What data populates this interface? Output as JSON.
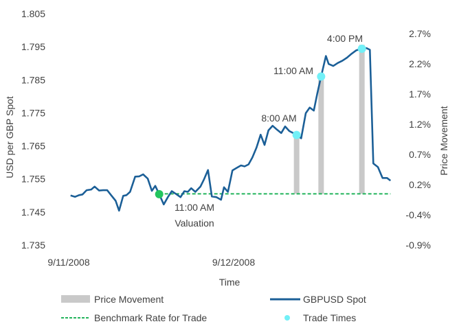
{
  "chart_data": {
    "type": "line",
    "title": "",
    "xlabel": "Time",
    "ylabel": "USD per GBP Spot",
    "y2label": "Price Movement",
    "x_ticks": [
      "9/11/2008",
      "9/12/2008"
    ],
    "y_ticks": [
      "1.805",
      "1.795",
      "1.785",
      "1.775",
      "1.765",
      "1.755",
      "1.745",
      "1.735"
    ],
    "ylim": [
      1.735,
      1.805
    ],
    "y2_ticks": [
      "2.7%",
      "2.2%",
      "1.7%",
      "1.2%",
      "0.7%",
      "0.2%",
      "-0.4%",
      "-0.9%"
    ],
    "y2lim": [
      -0.9,
      2.7
    ],
    "grid": false,
    "legend_position": "bottom",
    "colors": {
      "spot": "#1b5f97",
      "benchmark": "#22b35b",
      "bars": "#c9c9c9",
      "trade": "#72f0f7",
      "valuation": "#22c55e"
    },
    "series": [
      {
        "name": "GBPUSD Spot",
        "points": [
          [
            "2008-09-11 00:28",
            1.75
          ],
          [
            "2008-09-11 01:08",
            1.7496
          ],
          [
            "2008-09-11 01:42",
            1.7501
          ],
          [
            "2008-09-11 02:12",
            1.7503
          ],
          [
            "2008-09-11 02:48",
            1.7516
          ],
          [
            "2008-09-11 03:28",
            1.7518
          ],
          [
            "2008-09-11 03:58",
            1.7527
          ],
          [
            "2008-09-11 04:38",
            1.7515
          ],
          [
            "2008-09-11 05:12",
            1.7516
          ],
          [
            "2008-09-11 05:48",
            1.7516
          ],
          [
            "2008-09-11 06:22",
            1.7501
          ],
          [
            "2008-09-11 07:02",
            1.7484
          ],
          [
            "2008-09-11 07:32",
            1.7454
          ],
          [
            "2008-09-11 08:08",
            1.7499
          ],
          [
            "2008-09-11 08:36",
            1.7501
          ],
          [
            "2008-09-11 09:08",
            1.7511
          ],
          [
            "2008-09-11 09:52",
            1.7557
          ],
          [
            "2008-09-11 10:28",
            1.7558
          ],
          [
            "2008-09-11 11:02",
            1.7564
          ],
          [
            "2008-09-11 11:42",
            1.7551
          ],
          [
            "2008-09-11 12:18",
            1.7514
          ],
          [
            "2008-09-11 12:48",
            1.7529
          ],
          [
            "2008-09-11 13:22",
            1.7504
          ],
          [
            "2008-09-11 14:02",
            1.7473
          ],
          [
            "2008-09-11 14:38",
            1.7495
          ],
          [
            "2008-09-11 15:12",
            1.7513
          ],
          [
            "2008-09-11 15:52",
            1.7504
          ],
          [
            "2008-09-11 16:28",
            1.7495
          ],
          [
            "2008-09-11 17:02",
            1.7513
          ],
          [
            "2008-09-11 17:32",
            1.7511
          ],
          [
            "2008-09-11 18:02",
            1.7522
          ],
          [
            "2008-09-11 18:38",
            1.7511
          ],
          [
            "2008-09-11 19:22",
            1.7527
          ],
          [
            "2008-09-11 19:52",
            1.7548
          ],
          [
            "2008-09-11 20:28",
            1.7577
          ],
          [
            "2008-09-11 21:02",
            1.7497
          ],
          [
            "2008-09-11 21:42",
            1.7495
          ],
          [
            "2008-09-11 22:22",
            1.7487
          ],
          [
            "2008-09-11 22:48",
            1.7525
          ],
          [
            "2008-09-11 23:22",
            1.7511
          ],
          [
            "2008-09-12 00:02",
            1.7576
          ],
          [
            "2008-09-12 00:42",
            1.7584
          ],
          [
            "2008-09-12 01:16",
            1.7591
          ],
          [
            "2008-09-12 01:48",
            1.7588
          ],
          [
            "2008-09-12 02:22",
            1.7594
          ],
          [
            "2008-09-12 02:56",
            1.7615
          ],
          [
            "2008-09-12 03:32",
            1.7645
          ],
          [
            "2008-09-12 04:08",
            1.7684
          ],
          [
            "2008-09-12 04:42",
            1.7653
          ],
          [
            "2008-09-12 05:16",
            1.7697
          ],
          [
            "2008-09-12 05:52",
            1.7711
          ],
          [
            "2008-09-12 06:28",
            1.77
          ],
          [
            "2008-09-12 07:08",
            1.7689
          ],
          [
            "2008-09-12 07:42",
            1.7709
          ],
          [
            "2008-09-12 08:18",
            1.7695
          ],
          [
            "2008-09-12 08:52",
            1.7689
          ],
          [
            "2008-09-12 09:22",
            1.7683
          ],
          [
            "2008-09-12 10:02",
            1.7673
          ],
          [
            "2008-09-12 10:42",
            1.7749
          ],
          [
            "2008-09-12 11:16",
            1.7766
          ],
          [
            "2008-09-12 11:52",
            1.7757
          ],
          [
            "2008-09-12 12:22",
            1.7808
          ],
          [
            "2008-09-12 12:56",
            1.786
          ],
          [
            "2008-09-12 13:38",
            1.7922
          ],
          [
            "2008-09-12 14:02",
            1.7898
          ],
          [
            "2008-09-12 14:42",
            1.7892
          ],
          [
            "2008-09-12 15:22",
            1.7901
          ],
          [
            "2008-09-12 16:02",
            1.7908
          ],
          [
            "2008-09-12 16:42",
            1.7917
          ],
          [
            "2008-09-12 17:22",
            1.7929
          ],
          [
            "2008-09-12 18:02",
            1.7939
          ],
          [
            "2008-09-12 18:52",
            1.7944
          ],
          [
            "2008-09-12 19:32",
            1.7946
          ],
          [
            "2008-09-12 20:02",
            1.7941
          ],
          [
            "2008-09-12 20:32",
            1.7597
          ],
          [
            "2008-09-12 21:12",
            1.7586
          ],
          [
            "2008-09-12 21:52",
            1.7553
          ],
          [
            "2008-09-12 22:32",
            1.7553
          ],
          [
            "2008-09-12 23:02",
            1.7545
          ]
        ]
      },
      {
        "name": "Benchmark Rate for Trade",
        "value": 1.7505,
        "from": "2008-09-11 13:22",
        "to": "2008-09-12 23:02"
      },
      {
        "name": "Price Movement",
        "axis": "right",
        "bars": [
          {
            "t": "2008-09-12 09:22",
            "value": 1.02
          },
          {
            "t": "2008-09-12 12:56",
            "value": 2.03
          },
          {
            "t": "2008-09-12 18:52",
            "value": 2.51
          }
        ]
      },
      {
        "name": "Trade Times",
        "points": [
          [
            "2008-09-12 09:22",
            1.7683
          ],
          [
            "2008-09-12 12:56",
            1.786
          ],
          [
            "2008-09-12 18:52",
            1.7944
          ]
        ]
      }
    ],
    "valuation_point": [
      "2008-09-11 13:22",
      1.7504
    ],
    "annotations": {
      "valuation_time": "11:00 AM",
      "valuation_label": "Valuation",
      "trade1": "8:00 AM",
      "trade2": "11:00 AM",
      "trade3": "4:00 PM"
    },
    "legend": [
      "Price Movement",
      "GBPUSD Spot",
      "Benchmark Rate for Trade",
      "Trade Times"
    ]
  }
}
